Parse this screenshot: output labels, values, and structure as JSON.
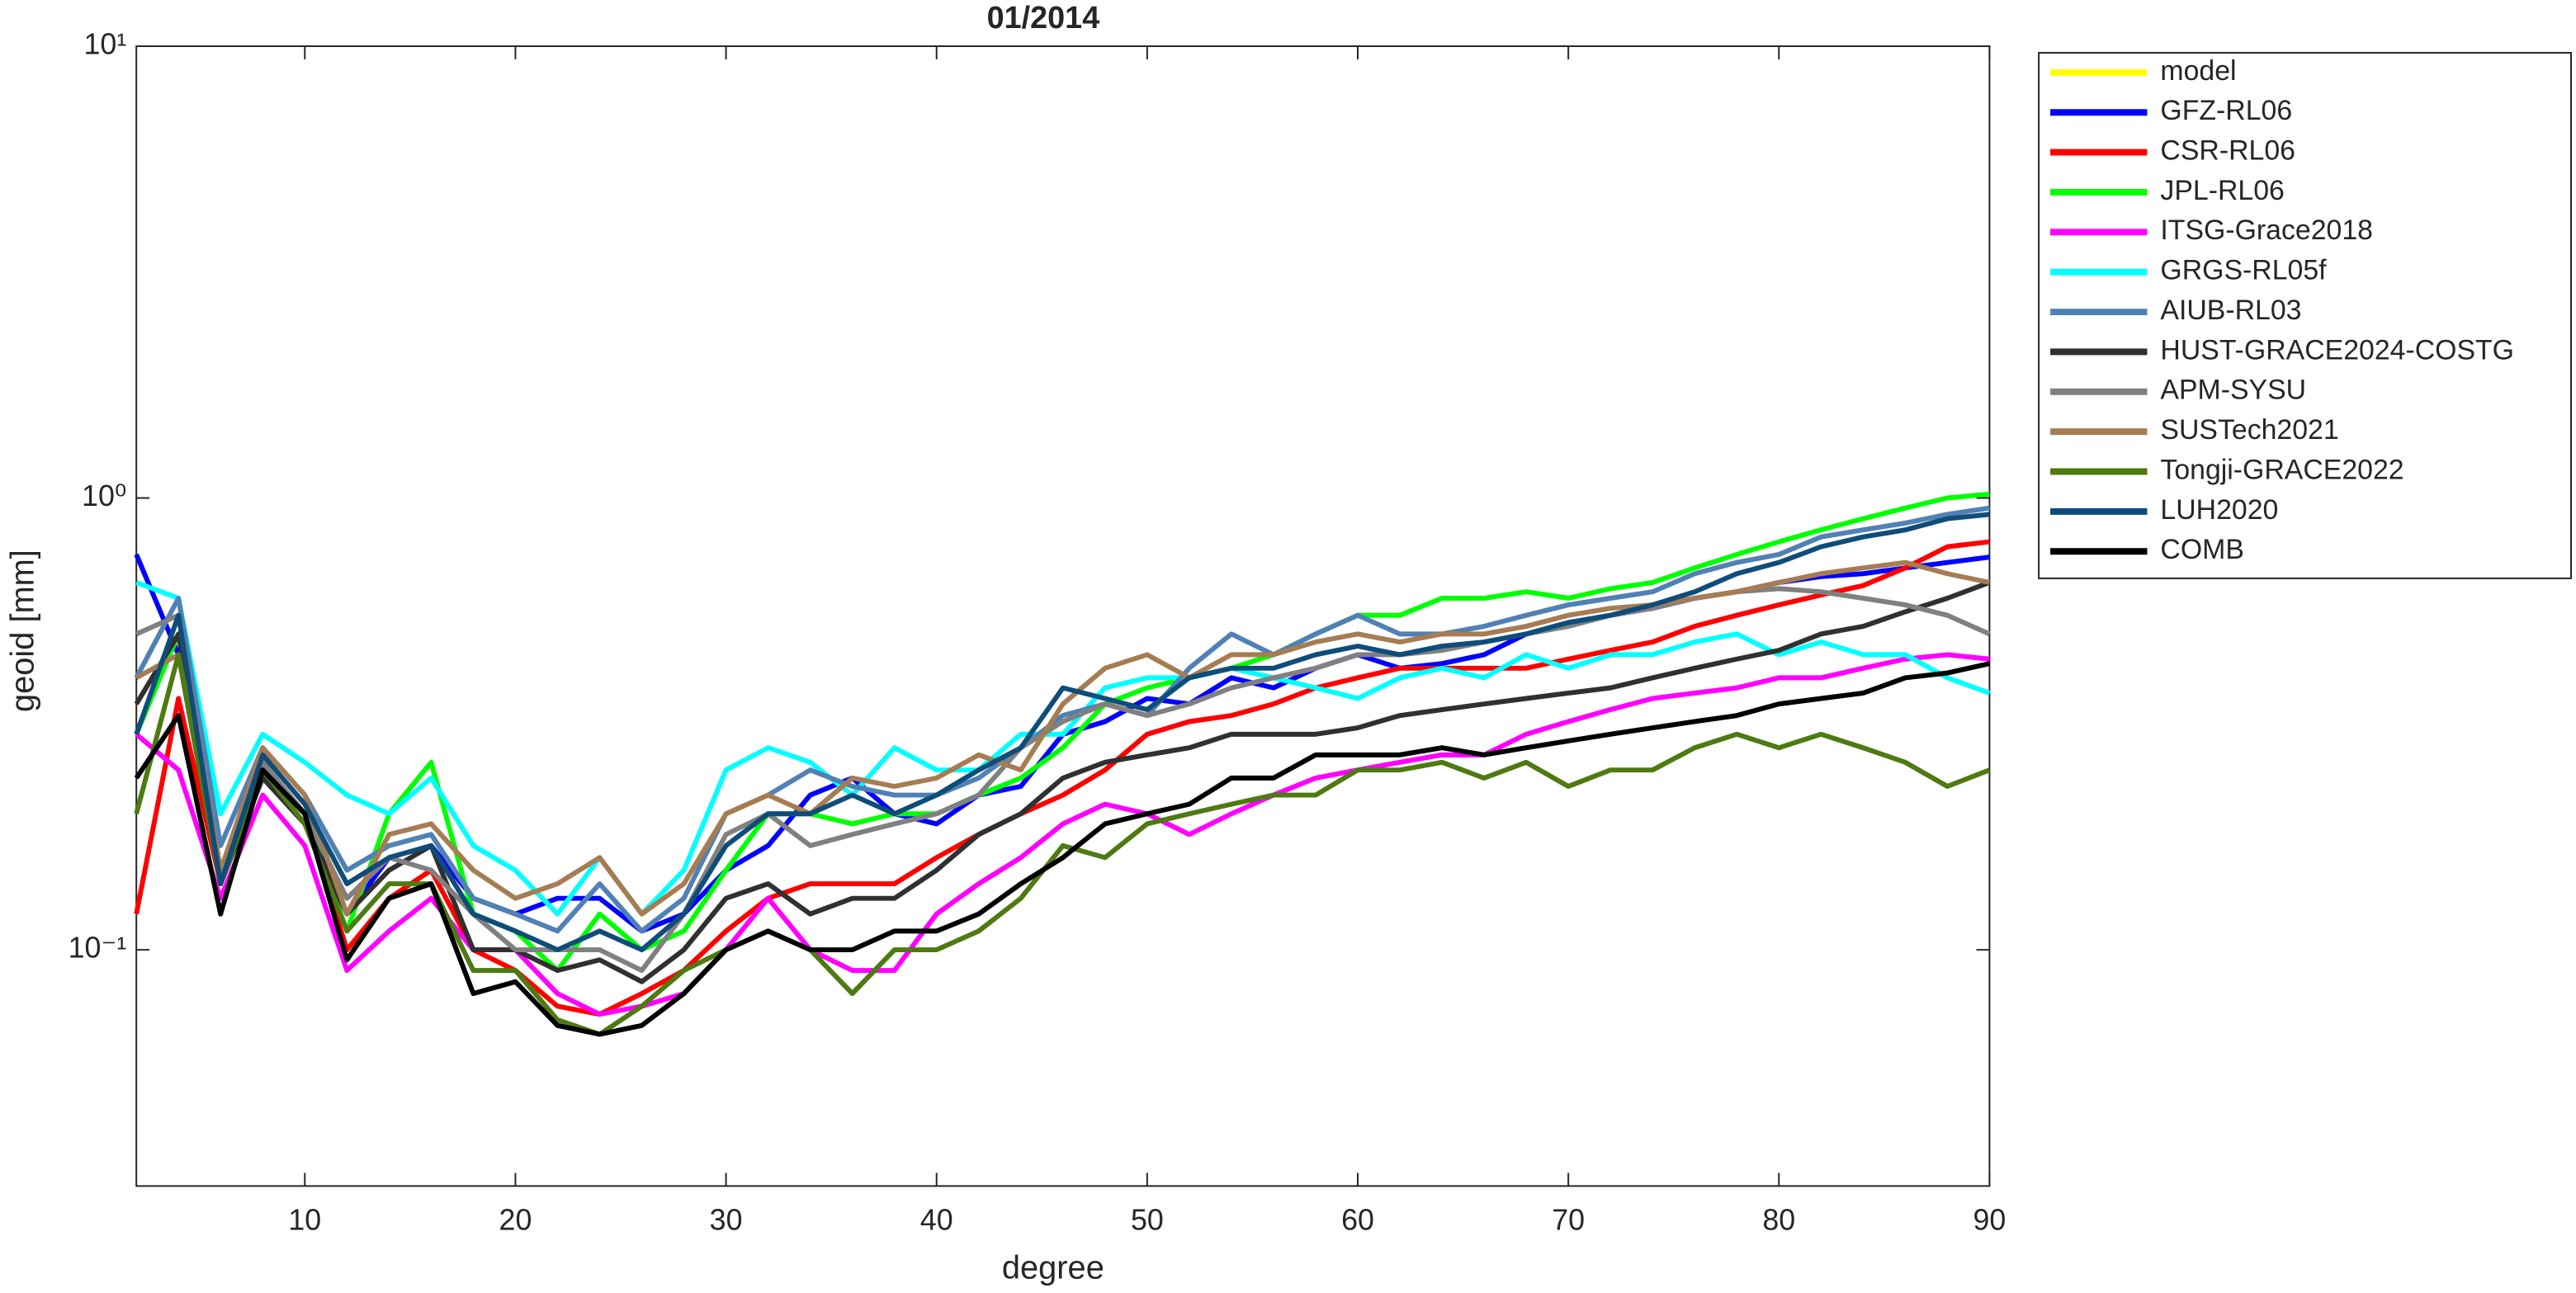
{
  "chart_data": {
    "type": "line",
    "title": "01/2014",
    "xlabel": "degree",
    "ylabel": "geoid [mm]",
    "x": [
      2,
      4,
      6,
      8,
      10,
      12,
      14,
      16,
      18,
      20,
      22,
      24,
      26,
      28,
      30,
      32,
      34,
      36,
      38,
      40,
      42,
      44,
      46,
      48,
      50,
      52,
      54,
      56,
      58,
      60,
      62,
      64,
      66,
      68,
      70,
      72,
      74,
      76,
      78,
      80,
      82,
      84,
      86,
      88,
      90
    ],
    "xlim": [
      2,
      90
    ],
    "xticks": [
      10,
      20,
      30,
      40,
      50,
      60,
      70,
      80,
      90
    ],
    "ylim": [
      0.03,
      10
    ],
    "yscale": "log",
    "yticks": [
      {
        "value": 0.1,
        "label": "10⁻¹"
      },
      {
        "value": 1,
        "label": "10⁰"
      },
      {
        "value": 10,
        "label": "10¹"
      }
    ],
    "grid": false,
    "legend": "outside-top-right",
    "series": [
      {
        "name": "model",
        "color": "#ffff00",
        "values": [
          null,
          null,
          null,
          null,
          null,
          null,
          null,
          null,
          null,
          null,
          null,
          null,
          null,
          null,
          null,
          null,
          null,
          null,
          null,
          null,
          null,
          null,
          null,
          null,
          null,
          null,
          null,
          null,
          null,
          null,
          null,
          null,
          null,
          null,
          null,
          null,
          null,
          null,
          null,
          null,
          null,
          null,
          null,
          null,
          null
        ]
      },
      {
        "name": "GFZ-RL06",
        "color": "#0000ff",
        "values": [
          0.75,
          0.45,
          0.14,
          0.25,
          0.2,
          0.12,
          0.16,
          0.17,
          0.13,
          0.12,
          0.13,
          0.13,
          0.11,
          0.12,
          0.15,
          0.17,
          0.22,
          0.24,
          0.2,
          0.19,
          0.22,
          0.23,
          0.3,
          0.32,
          0.36,
          0.35,
          0.4,
          0.38,
          0.42,
          0.45,
          0.42,
          0.43,
          0.45,
          0.5,
          0.53,
          0.55,
          0.57,
          0.6,
          0.62,
          0.65,
          0.67,
          0.68,
          0.7,
          0.72,
          0.74
        ]
      },
      {
        "name": "CSR-RL06",
        "color": "#ff0000",
        "values": [
          0.12,
          0.36,
          0.14,
          0.26,
          0.2,
          0.1,
          0.13,
          0.15,
          0.1,
          0.09,
          0.075,
          0.072,
          0.08,
          0.09,
          0.11,
          0.13,
          0.14,
          0.14,
          0.14,
          0.16,
          0.18,
          0.2,
          0.22,
          0.25,
          0.3,
          0.32,
          0.33,
          0.35,
          0.38,
          0.4,
          0.42,
          0.42,
          0.42,
          0.42,
          0.44,
          0.46,
          0.48,
          0.52,
          0.55,
          0.58,
          0.61,
          0.64,
          0.7,
          0.78,
          0.8
        ]
      },
      {
        "name": "JPL-RL06",
        "color": "#00ff00",
        "values": [
          0.3,
          0.5,
          0.15,
          0.25,
          0.2,
          0.11,
          0.2,
          0.26,
          0.12,
          0.11,
          0.09,
          0.12,
          0.1,
          0.11,
          0.15,
          0.2,
          0.2,
          0.19,
          0.2,
          0.2,
          0.22,
          0.24,
          0.28,
          0.35,
          0.38,
          0.4,
          0.42,
          0.45,
          0.5,
          0.55,
          0.55,
          0.6,
          0.6,
          0.62,
          0.6,
          0.63,
          0.65,
          0.7,
          0.75,
          0.8,
          0.85,
          0.9,
          0.95,
          1.0,
          1.02
        ]
      },
      {
        "name": "ITSG-Grace2018",
        "color": "#ff00ff",
        "values": [
          0.3,
          0.25,
          0.13,
          0.22,
          0.17,
          0.09,
          0.11,
          0.13,
          0.1,
          0.1,
          0.08,
          0.072,
          0.075,
          0.08,
          0.1,
          0.13,
          0.1,
          0.09,
          0.09,
          0.12,
          0.14,
          0.16,
          0.19,
          0.21,
          0.2,
          0.18,
          0.2,
          0.22,
          0.24,
          0.25,
          0.26,
          0.27,
          0.27,
          0.3,
          0.32,
          0.34,
          0.36,
          0.37,
          0.38,
          0.4,
          0.4,
          0.42,
          0.44,
          0.45,
          0.44
        ]
      },
      {
        "name": "GRGS-RL05f",
        "color": "#00ffff",
        "values": [
          0.65,
          0.6,
          0.2,
          0.3,
          0.26,
          0.22,
          0.2,
          0.24,
          0.17,
          0.15,
          0.12,
          0.16,
          0.12,
          0.15,
          0.25,
          0.28,
          0.26,
          0.22,
          0.28,
          0.25,
          0.25,
          0.3,
          0.3,
          0.38,
          0.4,
          0.4,
          0.42,
          0.4,
          0.38,
          0.36,
          0.4,
          0.42,
          0.4,
          0.45,
          0.42,
          0.45,
          0.45,
          0.48,
          0.5,
          0.45,
          0.48,
          0.45,
          0.45,
          0.4,
          0.37
        ]
      },
      {
        "name": "AIUB-RL03",
        "color": "#5081b5",
        "values": [
          0.4,
          0.6,
          0.17,
          0.28,
          0.22,
          0.15,
          0.17,
          0.18,
          0.13,
          0.12,
          0.11,
          0.14,
          0.11,
          0.13,
          0.2,
          0.22,
          0.25,
          0.23,
          0.22,
          0.22,
          0.24,
          0.28,
          0.33,
          0.35,
          0.33,
          0.42,
          0.5,
          0.45,
          0.5,
          0.55,
          0.5,
          0.5,
          0.52,
          0.55,
          0.58,
          0.6,
          0.62,
          0.68,
          0.72,
          0.75,
          0.82,
          0.85,
          0.88,
          0.92,
          0.95
        ]
      },
      {
        "name": "HUST-GRACE2024-COSTG",
        "color": "#303030",
        "values": [
          0.35,
          0.5,
          0.14,
          0.24,
          0.19,
          0.12,
          0.15,
          0.17,
          0.1,
          0.1,
          0.09,
          0.095,
          0.085,
          0.1,
          0.13,
          0.14,
          0.12,
          0.13,
          0.13,
          0.15,
          0.18,
          0.2,
          0.24,
          0.26,
          0.27,
          0.28,
          0.3,
          0.3,
          0.3,
          0.31,
          0.33,
          0.34,
          0.35,
          0.36,
          0.37,
          0.38,
          0.4,
          0.42,
          0.44,
          0.46,
          0.5,
          0.52,
          0.56,
          0.6,
          0.65
        ]
      },
      {
        "name": "APM-SYSU",
        "color": "#808080",
        "values": [
          0.5,
          0.55,
          0.15,
          0.26,
          0.2,
          0.13,
          0.16,
          0.15,
          0.12,
          0.1,
          0.1,
          0.1,
          0.09,
          0.12,
          0.18,
          0.2,
          0.17,
          0.18,
          0.19,
          0.2,
          0.22,
          0.28,
          0.32,
          0.35,
          0.33,
          0.35,
          0.38,
          0.4,
          0.42,
          0.45,
          0.45,
          0.46,
          0.48,
          0.5,
          0.52,
          0.55,
          0.57,
          0.6,
          0.62,
          0.63,
          0.62,
          0.6,
          0.58,
          0.55,
          0.5
        ]
      },
      {
        "name": "SUSTech2021",
        "color": "#a67c52",
        "values": [
          0.4,
          0.45,
          0.15,
          0.28,
          0.22,
          0.12,
          0.18,
          0.19,
          0.15,
          0.13,
          0.14,
          0.16,
          0.12,
          0.14,
          0.2,
          0.22,
          0.2,
          0.24,
          0.23,
          0.24,
          0.27,
          0.25,
          0.35,
          0.42,
          0.45,
          0.4,
          0.45,
          0.45,
          0.48,
          0.5,
          0.48,
          0.5,
          0.5,
          0.52,
          0.55,
          0.57,
          0.58,
          0.6,
          0.62,
          0.65,
          0.68,
          0.7,
          0.72,
          0.68,
          0.65
        ]
      },
      {
        "name": "Tongji-GRACE2022",
        "color": "#4e7a12",
        "values": [
          0.2,
          0.45,
          0.14,
          0.25,
          0.19,
          0.11,
          0.14,
          0.14,
          0.09,
          0.09,
          0.07,
          0.065,
          0.075,
          0.09,
          0.1,
          0.11,
          0.1,
          0.08,
          0.1,
          0.1,
          0.11,
          0.13,
          0.17,
          0.16,
          0.19,
          0.2,
          0.21,
          0.22,
          0.22,
          0.25,
          0.25,
          0.26,
          0.24,
          0.26,
          0.23,
          0.25,
          0.25,
          0.28,
          0.3,
          0.28,
          0.3,
          0.28,
          0.26,
          0.23,
          0.25
        ]
      },
      {
        "name": "LUH2020",
        "color": "#0e4d7a",
        "values": [
          0.3,
          0.55,
          0.14,
          0.27,
          0.21,
          0.14,
          0.16,
          0.17,
          0.12,
          0.11,
          0.1,
          0.11,
          0.1,
          0.12,
          0.17,
          0.2,
          0.2,
          0.22,
          0.2,
          0.22,
          0.25,
          0.28,
          0.38,
          0.36,
          0.34,
          0.4,
          0.42,
          0.42,
          0.45,
          0.47,
          0.45,
          0.47,
          0.48,
          0.5,
          0.53,
          0.55,
          0.58,
          0.62,
          0.68,
          0.72,
          0.78,
          0.82,
          0.85,
          0.9,
          0.92
        ]
      },
      {
        "name": "COMB",
        "color": "#000000",
        "values": [
          0.24,
          0.33,
          0.12,
          0.25,
          0.2,
          0.095,
          0.13,
          0.14,
          0.08,
          0.085,
          0.068,
          0.065,
          0.068,
          0.08,
          0.1,
          0.11,
          0.1,
          0.1,
          0.11,
          0.11,
          0.12,
          0.14,
          0.16,
          0.19,
          0.2,
          0.21,
          0.24,
          0.24,
          0.27,
          0.27,
          0.27,
          0.28,
          0.27,
          0.28,
          0.29,
          0.3,
          0.31,
          0.32,
          0.33,
          0.35,
          0.36,
          0.37,
          0.4,
          0.41,
          0.43
        ]
      }
    ]
  }
}
